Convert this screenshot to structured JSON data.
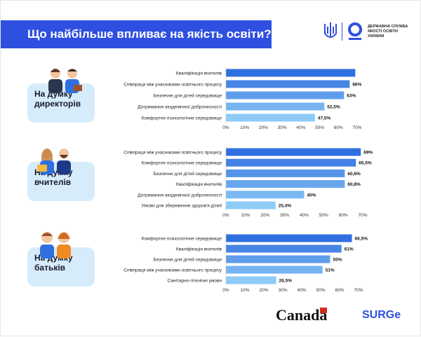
{
  "title": "Що найбільше впливає на якість освіти?",
  "logo": {
    "text": "ДЕРЖАВНА СЛУЖБА ЯКОСТІ ОСВІТИ УКРАЇНИ"
  },
  "footer": {
    "canada": "Canada",
    "surge": "SURGe"
  },
  "colors": {
    "title_bg": "#2f4fe0",
    "bar_dark": "#2f6fe0",
    "bar_light": "#8ecbf7",
    "card_bg": "#d6ecfb"
  },
  "chart_data": [
    {
      "type": "bar",
      "orientation": "horizontal",
      "group": "На думку директорів",
      "categories": [
        "Кваліфікація вчителів",
        "Співпраця між учасниками освітнього процесу",
        "Безпечне для дітей середовище",
        "Дотримання академічної доброчесності",
        "Комфортне психологічне середовище"
      ],
      "values": [
        69,
        66,
        63,
        52.5,
        47.5
      ],
      "labels": [
        "",
        "66%",
        "63%",
        "52,5%",
        "47,5%"
      ],
      "ticks": [
        "0%",
        "10%",
        "20%",
        "30%",
        "40%",
        "50%",
        "60%",
        "70%"
      ],
      "xlim": [
        0,
        70
      ]
    },
    {
      "type": "bar",
      "orientation": "horizontal",
      "group": "На думку вчителів",
      "categories": [
        "Співпраця між учасниками освітнього процесу",
        "Комфортне психологічне середовище",
        "Безпечне для дітей середовище",
        "Кваліфікація вчителів",
        "Дотримання академічної доброчесності",
        "Умови для збереження здоров'я дітей"
      ],
      "values": [
        69,
        66.5,
        60.8,
        60.8,
        40,
        25.4
      ],
      "labels": [
        "69%",
        "66,5%",
        "60,8%",
        "60,8%",
        "40%",
        "25,4%"
      ],
      "ticks": [
        "0%",
        "10%",
        "20%",
        "30%",
        "40%",
        "50%",
        "60%",
        "70%"
      ],
      "xlim": [
        0,
        70
      ]
    },
    {
      "type": "bar",
      "orientation": "horizontal",
      "group": "На думку батьків",
      "categories": [
        "Комфортне психологічне середовище",
        "Кваліфікація вчителів",
        "Безпечне для дітей середовище",
        "Співпраця між учасниками освітнього процесу",
        "Санітарно-гігієнічні умови"
      ],
      "values": [
        66.5,
        61,
        55,
        51,
        26.5
      ],
      "labels": [
        "66,5%",
        "61%",
        "55%",
        "51%",
        "26,5%"
      ],
      "ticks": [
        "0%",
        "10%",
        "20%",
        "30%",
        "40%",
        "50%",
        "60%",
        "70%"
      ],
      "xlim": [
        0,
        70
      ]
    }
  ]
}
